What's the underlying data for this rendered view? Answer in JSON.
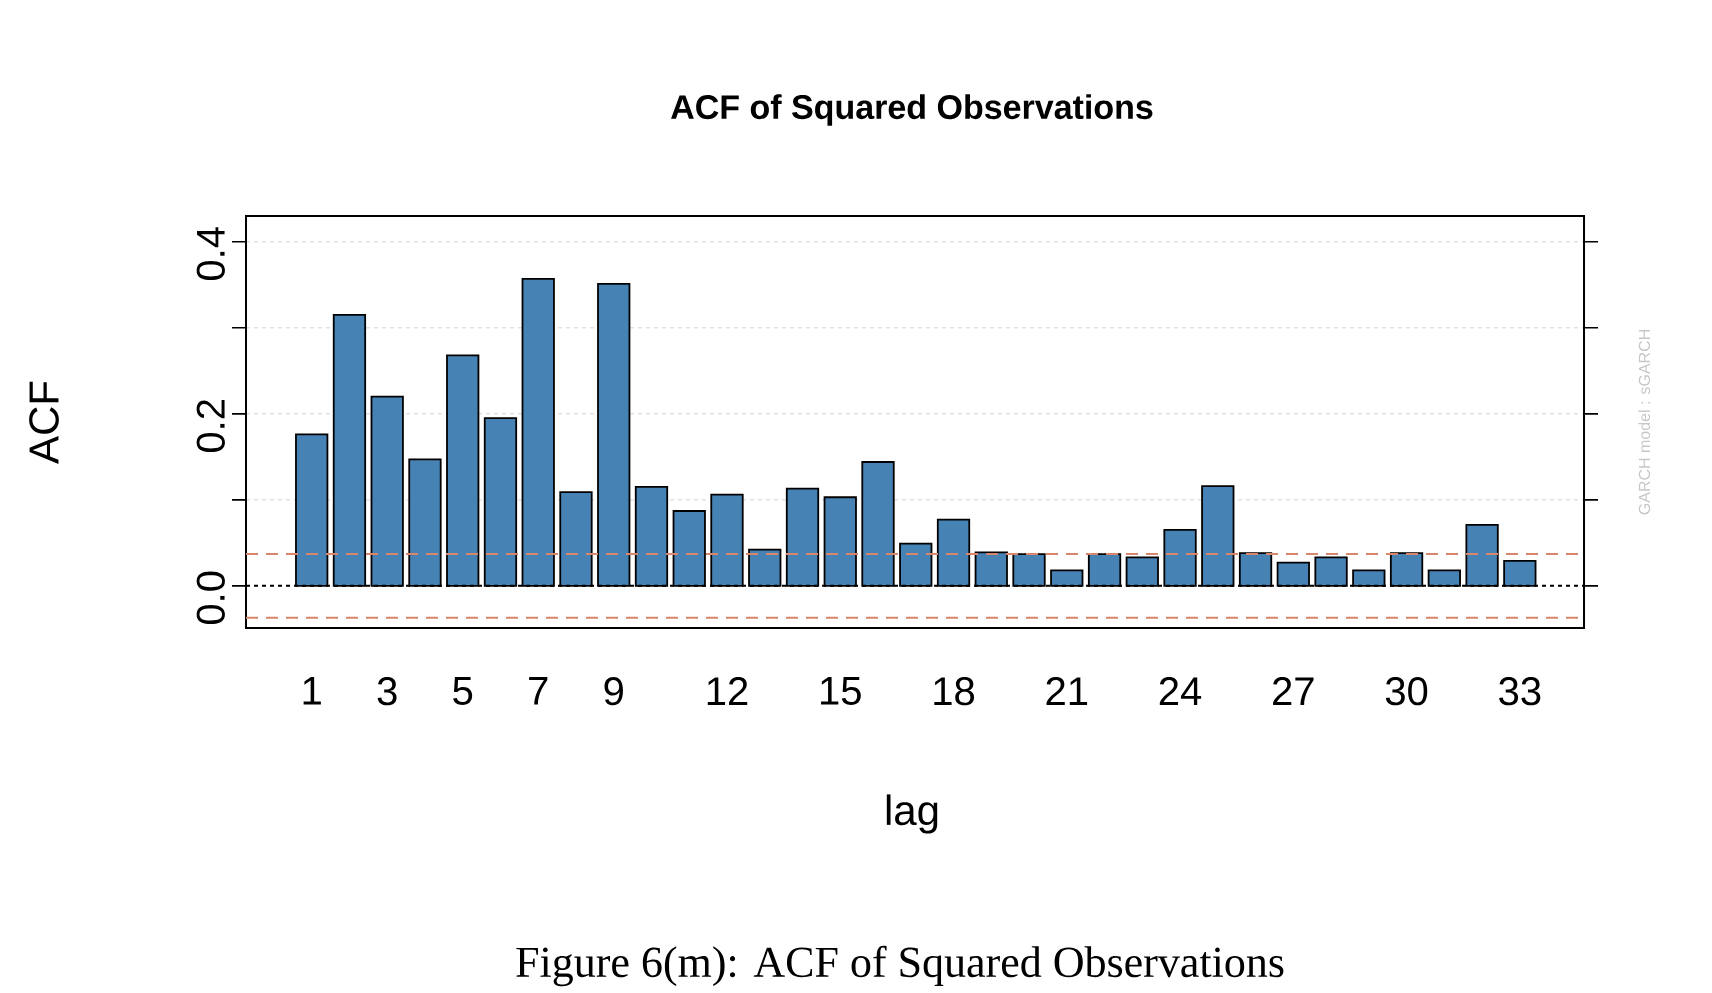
{
  "chart_data": {
    "type": "bar",
    "title": "ACF of Squared Observations",
    "xlabel": "lag",
    "ylabel": "ACF",
    "x": [
      1,
      2,
      3,
      4,
      5,
      6,
      7,
      8,
      9,
      10,
      11,
      12,
      13,
      14,
      15,
      16,
      17,
      18,
      19,
      20,
      21,
      22,
      23,
      24,
      25,
      26,
      27,
      28,
      29,
      30,
      31,
      32,
      33
    ],
    "values": [
      0.176,
      0.315,
      0.22,
      0.147,
      0.268,
      0.195,
      0.357,
      0.109,
      0.351,
      0.115,
      0.087,
      0.106,
      0.042,
      0.113,
      0.103,
      0.144,
      0.049,
      0.077,
      0.039,
      0.037,
      0.018,
      0.037,
      0.033,
      0.065,
      0.116,
      0.038,
      0.027,
      0.033,
      0.018,
      0.038,
      0.018,
      0.071,
      0.029
    ],
    "color": "#4682b4",
    "xlim": [
      -0.74,
      34.7
    ],
    "xticks": [
      1,
      3,
      5,
      7,
      9,
      12,
      15,
      18,
      21,
      24,
      27,
      30,
      33
    ],
    "ylim": [
      -0.049,
      0.43
    ],
    "yticks": [
      {
        "value": 0,
        "label": "0.0"
      },
      {
        "value": 0.1,
        "label": null
      },
      {
        "value": 0.2,
        "label": "0.2"
      },
      {
        "value": 0.3,
        "label": null
      },
      {
        "value": 0.4,
        "label": "0.4"
      }
    ],
    "grid": "y",
    "ref_lines": [
      {
        "axis": "y",
        "value": 0,
        "color": "#000000",
        "line_style": "dotted"
      },
      {
        "axis": "y",
        "value": 0.037,
        "color": "#d9866b",
        "line_style": "dashed"
      },
      {
        "axis": "y",
        "value": -0.037,
        "color": "#d9866b",
        "line_style": "dashed"
      }
    ],
    "annotations": [
      "GARCH model : sGARCH",
      "Figure 6(m): ACF of Squared Observations"
    ]
  }
}
